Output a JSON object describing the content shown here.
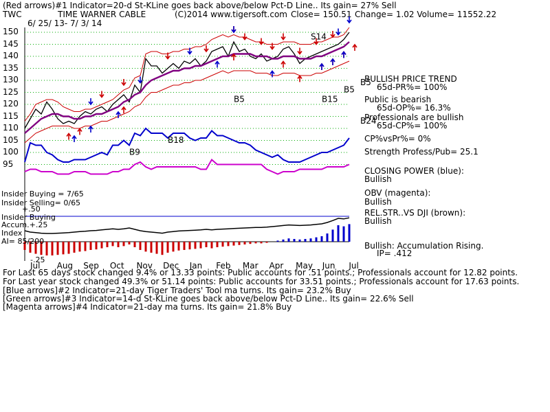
{
  "header": {
    "line1": "(Red arrows)#1 Indicator=20-d St-KLine goes back above/below Pct-D Line.. Its gain= 27% Sell",
    "ticker": "TWC",
    "company": "TIME WARNER CABLE",
    "copyright": "(C)2014 www.tigersoft.com",
    "close": "Close=  150.51",
    "change": "Change= 1.02 Volume= 11552.22",
    "daterange": "6/ 25/ 13-  7/ 3/ 14"
  },
  "colors": {
    "price": "#000000",
    "red_band": "#cc0000",
    "purple_ma": "#800080",
    "blue_cp": "#0000cc",
    "magenta_obv": "#cc00cc",
    "grid_green": "#00aa00",
    "accum_blue": "#0000cc",
    "accum_red": "#cc0000"
  },
  "chart_data": {
    "type": "line",
    "title": "TIME WARNER CABLE",
    "months": [
      "Jul",
      "Aug",
      "Sep",
      "Oct",
      "Nov",
      "Dec",
      "Jan",
      "Feb",
      "Mar",
      "Apr",
      "May",
      "Jun",
      "Jul"
    ],
    "price_ticks": [
      150,
      145,
      140,
      135,
      130,
      125,
      120,
      115,
      110,
      105,
      100,
      95
    ],
    "ylim": [
      92,
      152
    ],
    "grid": true,
    "series": [
      {
        "key": "price",
        "type": "line",
        "values": [
          110,
          114,
          118,
          116,
          121,
          118,
          114,
          112,
          113,
          112,
          115,
          117,
          116,
          118,
          119,
          117,
          120,
          122,
          124,
          121,
          128,
          125,
          139,
          136,
          136,
          133,
          135,
          137,
          135,
          138,
          137,
          139,
          136,
          138,
          142,
          143,
          144,
          140,
          146,
          142,
          143,
          140,
          139,
          141,
          138,
          139,
          140,
          143,
          144,
          141,
          137,
          139,
          140,
          141,
          142,
          143,
          144,
          145,
          147,
          150
        ]
      },
      {
        "key": "ma21",
        "type": "line",
        "values": [
          108,
          110,
          112,
          114,
          115,
          116,
          116,
          115,
          115,
          114,
          114,
          115,
          115,
          116,
          116,
          117,
          118,
          119,
          121,
          122,
          124,
          125,
          128,
          130,
          131,
          132,
          133,
          134,
          134,
          135,
          135,
          136,
          136,
          137,
          138,
          139,
          140,
          140,
          141,
          141,
          141,
          141,
          140,
          140,
          140,
          139,
          139,
          140,
          140,
          140,
          139,
          139,
          139,
          140,
          140,
          141,
          142,
          143,
          144,
          146
        ]
      },
      {
        "key": "upper_band",
        "type": "line",
        "values": [
          113,
          116,
          120,
          121,
          122,
          122,
          121,
          119,
          118,
          117,
          117,
          118,
          118,
          119,
          120,
          121,
          122,
          124,
          126,
          127,
          131,
          132,
          141,
          142,
          142,
          141,
          141,
          142,
          142,
          143,
          143,
          144,
          144,
          145,
          147,
          148,
          149,
          148,
          149,
          148,
          148,
          147,
          146,
          146,
          145,
          145,
          145,
          146,
          146,
          146,
          145,
          145,
          145,
          146,
          146,
          147,
          148,
          148,
          149,
          152
        ]
      },
      {
        "key": "lower_band",
        "type": "line",
        "values": [
          104,
          106,
          108,
          109,
          110,
          111,
          111,
          111,
          111,
          110,
          110,
          111,
          111,
          112,
          113,
          113,
          114,
          115,
          116,
          117,
          119,
          120,
          123,
          125,
          125,
          126,
          127,
          128,
          128,
          129,
          129,
          130,
          130,
          131,
          132,
          133,
          134,
          133,
          134,
          134,
          134,
          134,
          133,
          133,
          133,
          132,
          132,
          133,
          133,
          133,
          132,
          132,
          132,
          133,
          133,
          134,
          135,
          136,
          137,
          138
        ]
      },
      {
        "key": "closing_power",
        "type": "line",
        "values": [
          96,
          104,
          103,
          103,
          100,
          99,
          97,
          96,
          96,
          97,
          97,
          97,
          98,
          99,
          100,
          99,
          103,
          103,
          105,
          103,
          108,
          107,
          110,
          108,
          108,
          108,
          106,
          108,
          108,
          108,
          106,
          105,
          106,
          106,
          109,
          107,
          107,
          106,
          105,
          104,
          104,
          103,
          101,
          100,
          99,
          98,
          99,
          97,
          96,
          96,
          96,
          97,
          98,
          99,
          100,
          100,
          101,
          102,
          103,
          106
        ]
      },
      {
        "key": "obv",
        "type": "line",
        "values": [
          92,
          93,
          93,
          92,
          92,
          92,
          91,
          91,
          91,
          92,
          92,
          92,
          91,
          91,
          91,
          91,
          92,
          92,
          93,
          93,
          95,
          96,
          94,
          93,
          94,
          94,
          94,
          94,
          94,
          94,
          94,
          94,
          93,
          93,
          97,
          95,
          95,
          95,
          95,
          95,
          95,
          95,
          95,
          95,
          93,
          92,
          91,
          92,
          92,
          92,
          93,
          93,
          93,
          93,
          93,
          94,
          94,
          94,
          94,
          95
        ]
      }
    ],
    "markers": [
      {
        "text": "S14",
        "x": 52,
        "y": 147,
        "color": "#000000"
      },
      {
        "text": "B18",
        "x": 26,
        "y": 104,
        "color": "#000000"
      },
      {
        "text": "B9",
        "x": 19,
        "y": 99,
        "color": "#000000"
      },
      {
        "text": "B5",
        "x": 38,
        "y": 121,
        "color": "#000000"
      },
      {
        "text": "B15",
        "x": 54,
        "y": 121,
        "color": "#000000"
      },
      {
        "text": "B5",
        "x": 58,
        "y": 125,
        "color": "#000000"
      },
      {
        "text": "B5",
        "x": 61,
        "y": 128,
        "color": "#000000"
      },
      {
        "text": "B24",
        "x": 61,
        "y": 112,
        "color": "#000000"
      }
    ],
    "red_up_arrows": [
      8,
      10,
      18,
      38,
      47,
      50,
      54,
      56,
      58,
      60
    ],
    "red_down_arrows": [
      14,
      18,
      26,
      33,
      38,
      40,
      43,
      45,
      47,
      50,
      53,
      56
    ],
    "blue_up_arrows": [
      9,
      12,
      17,
      35,
      45,
      54,
      56,
      58
    ],
    "blue_down_arrows": [
      12,
      21,
      30,
      38,
      57,
      59
    ],
    "insider_text": [
      "Insider Buying = 7/65",
      "Insider Selling= 0/65",
      "Insider Buying",
      "Accum.+.25",
      "Index",
      "AI= 85/200"
    ],
    "accum_ticks": [
      "+.50",
      "+.25",
      "-.25"
    ],
    "accum_values": [
      -0.15,
      -0.2,
      -0.22,
      -0.24,
      -0.25,
      -0.25,
      -0.24,
      -0.23,
      -0.22,
      -0.2,
      -0.18,
      -0.17,
      -0.15,
      -0.14,
      -0.12,
      -0.1,
      -0.08,
      -0.1,
      -0.08,
      -0.05,
      -0.1,
      -0.15,
      -0.18,
      -0.2,
      -0.22,
      -0.24,
      -0.2,
      -0.18,
      -0.16,
      -0.15,
      -0.14,
      -0.13,
      -0.12,
      -0.1,
      -0.12,
      -0.1,
      -0.09,
      -0.08,
      -0.07,
      -0.06,
      -0.05,
      -0.04,
      -0.03,
      -0.03,
      -0.02,
      0.0,
      0.02,
      0.04,
      0.06,
      0.05,
      0.04,
      0.05,
      0.06,
      0.08,
      0.1,
      0.15,
      0.22,
      0.3,
      0.28,
      0.32
    ]
  },
  "sidepanel": {
    "trend_title": "BULLISH PRICE TREND",
    "trend_sub": "65d-PR%= 100%",
    "public": "Public is bearish",
    "public_sub": "65d-OP%= 16.3%",
    "prof": "Professionals are bullish",
    "prof_sub": "65d-CP%= 100%",
    "cpvspr": "CP%vsPr%=  0%",
    "strength": "Strength Profess/Pub= 25.1",
    "cp_title": "CLOSING POWER (blue):",
    "cp_val": "Bullish",
    "obv_title": "OBV (magenta):",
    "obv_val": "Bullish",
    "rel_title": "REL.STR..VS DJI (brown):",
    "rel_val": "Bullish",
    "accum_title": "Bullish: Accumulation Rising.",
    "ip": "IP=  .412"
  },
  "footer": {
    "l1a": "For Last 65 days stock changed  9.4% or  13.33 points:  Public accounts for  .51 points.;  Professionals account for  12.82 points.",
    "l2a": "For Last year stock changed  49.3% or  51.14 points:  Public accounts for  33.51 points.;  Professionals account for  17.63 points.",
    "l3": "[Blue arrows]#2 Indicator=21-day Tiger Traders' Tool ma turns. Its gain= 23.2% Buy",
    "l4": "[Green arrows]#3 Indicator=14-d St-KLine goes back above/below Pct-D Line.. Its gain= 22.6% Sell",
    "l5": "[Magenta arrows]#4 Indicator=21-day ma turns. Its gain= 21.8% Buy"
  }
}
